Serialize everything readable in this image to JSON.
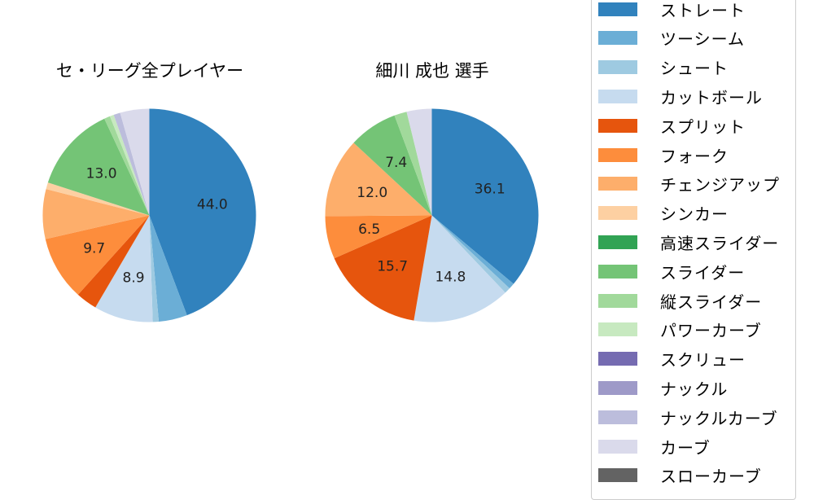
{
  "chart_data": [
    {
      "type": "pie",
      "title": "セ・リーグ全プレイヤー",
      "start_angle": "90deg (12 o'clock), clockwise",
      "slices": [
        {
          "label": "ストレート",
          "value": 44.0,
          "color": "#3182bd",
          "labeled": true
        },
        {
          "label": "ツーシーム",
          "value": 4.3,
          "color": "#6baed6",
          "labeled": false
        },
        {
          "label": "シュート",
          "value": 0.9,
          "color": "#9ecae1",
          "labeled": false
        },
        {
          "label": "カットボール",
          "value": 8.9,
          "color": "#c6dbef",
          "labeled": true
        },
        {
          "label": "スプリット",
          "value": 3.2,
          "color": "#e6550d",
          "labeled": false
        },
        {
          "label": "フォーク",
          "value": 9.7,
          "color": "#fd8d3c",
          "labeled": true
        },
        {
          "label": "チェンジアップ",
          "value": 7.5,
          "color": "#fdae6b",
          "labeled": false
        },
        {
          "label": "シンカー",
          "value": 1.0,
          "color": "#fdd0a2",
          "labeled": false
        },
        {
          "label": "スライダー",
          "value": 13.0,
          "color": "#74c476",
          "labeled": true
        },
        {
          "label": "縦スライダー",
          "value": 0.9,
          "color": "#a1d99b",
          "labeled": false
        },
        {
          "label": "パワーカーブ",
          "value": 0.6,
          "color": "#c7e9c0",
          "labeled": false
        },
        {
          "label": "ナックルカーブ",
          "value": 1.0,
          "color": "#bcbddc",
          "labeled": false
        },
        {
          "label": "カーブ",
          "value": 4.4,
          "color": "#dadaeb",
          "labeled": false
        }
      ]
    },
    {
      "type": "pie",
      "title": "細川 成也  選手",
      "start_angle": "90deg (12 o'clock), clockwise",
      "slices": [
        {
          "label": "ストレート",
          "value": 36.1,
          "color": "#3182bd",
          "labeled": true
        },
        {
          "label": "ツーシーム",
          "value": 0.9,
          "color": "#6baed6",
          "labeled": false
        },
        {
          "label": "シュート",
          "value": 0.9,
          "color": "#9ecae1",
          "labeled": false
        },
        {
          "label": "カットボール",
          "value": 14.8,
          "color": "#c6dbef",
          "labeled": true
        },
        {
          "label": "スプリット",
          "value": 15.7,
          "color": "#e6550d",
          "labeled": true
        },
        {
          "label": "フォーク",
          "value": 6.5,
          "color": "#fd8d3c",
          "labeled": true
        },
        {
          "label": "チェンジアップ",
          "value": 12.0,
          "color": "#fdae6b",
          "labeled": true
        },
        {
          "label": "スライダー",
          "value": 7.4,
          "color": "#74c476",
          "labeled": true
        },
        {
          "label": "縦スライダー",
          "value": 1.9,
          "color": "#a1d99b",
          "labeled": false
        },
        {
          "label": "カーブ",
          "value": 3.8,
          "color": "#dadaeb",
          "labeled": false
        }
      ]
    }
  ],
  "titles": {
    "left": "セ・リーグ全プレイヤー",
    "right": "細川 成也  選手"
  },
  "legend": {
    "items": [
      {
        "label": "ストレート",
        "color": "#3182bd"
      },
      {
        "label": "ツーシーム",
        "color": "#6baed6"
      },
      {
        "label": "シュート",
        "color": "#9ecae1"
      },
      {
        "label": "カットボール",
        "color": "#c6dbef"
      },
      {
        "label": "スプリット",
        "color": "#e6550d"
      },
      {
        "label": "フォーク",
        "color": "#fd8d3c"
      },
      {
        "label": "チェンジアップ",
        "color": "#fdae6b"
      },
      {
        "label": "シンカー",
        "color": "#fdd0a2"
      },
      {
        "label": "高速スライダー",
        "color": "#31a354"
      },
      {
        "label": "スライダー",
        "color": "#74c476"
      },
      {
        "label": "縦スライダー",
        "color": "#a1d99b"
      },
      {
        "label": "パワーカーブ",
        "color": "#c7e9c0"
      },
      {
        "label": "スクリュー",
        "color": "#756bb1"
      },
      {
        "label": "ナックル",
        "color": "#9e9ac8"
      },
      {
        "label": "ナックルカーブ",
        "color": "#bcbddc"
      },
      {
        "label": "カーブ",
        "color": "#dadaeb"
      },
      {
        "label": "スローカーブ",
        "color": "#636363"
      }
    ]
  }
}
